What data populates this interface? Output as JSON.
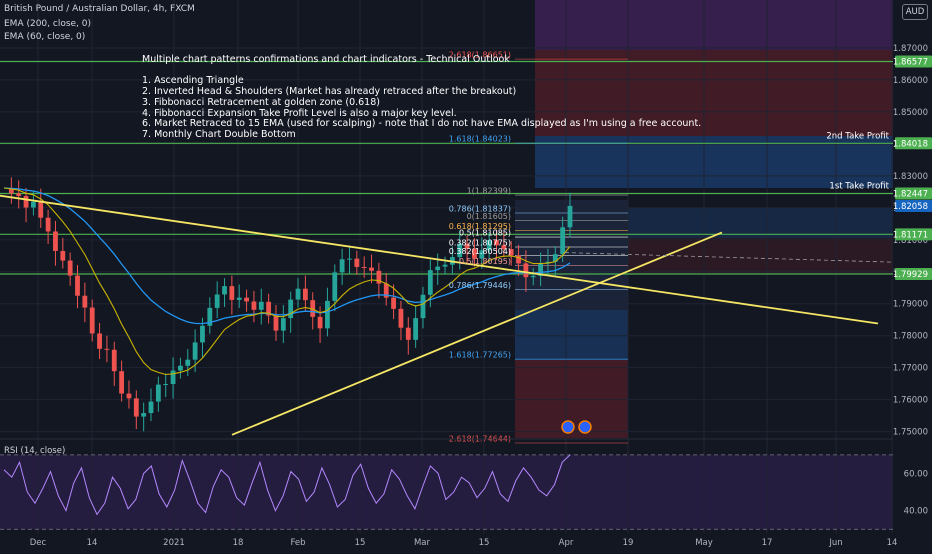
{
  "legend": {
    "symbol": "British Pound / Australian Dollar, 4h, FXCM",
    "ema200": "EMA (200, close, 0)",
    "ema60": "EMA (60, close, 0)",
    "currency": "AUD"
  },
  "annotation": {
    "title": "Multiple chart patterns confirmations and chart indicators - Technical Outlook",
    "items": [
      "1. Ascending Triangle",
      "2. Inverted Head & Shoulders (Market has already retraced after the breakout)",
      "3. Fibbonacci Retracement at golden zone (0.618)",
      "4. Fibbonacci Expansion Take Profit Level is also a major key level.",
      "6. Market Retraced to 15 EMA (used for scalping) - note that I do not have EMA displayed as I'm using a free account.",
      "7. Monthly Chart Double Bottom"
    ]
  },
  "targets": {
    "tp1": "1st Take Profit",
    "tp2": "2nd Take Profit"
  },
  "rsi_label": "RSI (14, close)",
  "colors": {
    "background": "#131722",
    "grid": "#1f2433",
    "axis_text": "#b2b5be",
    "trendline": "#f5e663",
    "key_level": "#4caf50",
    "ema200": "#2196f3",
    "ema60": "#c8b400",
    "rsi": "#b388ff",
    "up_candle": "#26a69a",
    "down_candle": "#ef5350"
  },
  "chart_data": [
    {
      "type": "candlestick",
      "title": "British Pound / Australian Dollar, 4h, FXCM",
      "y_ticks": [
        "1.87000",
        "1.86000",
        "1.85000",
        "1.84000",
        "1.83000",
        "1.82000",
        "1.81000",
        "1.80000",
        "1.79000",
        "1.78000",
        "1.77000",
        "1.76000",
        "1.75000"
      ],
      "ylim": [
        1.748,
        1.885
      ],
      "x_ticks": [
        "Dec",
        "14",
        "2021",
        "18",
        "Feb",
        "15",
        "Mar",
        "15",
        "Apr",
        "19",
        "May",
        "17",
        "Jun",
        "14"
      ],
      "price_badges": [
        {
          "value": "1.86577",
          "color": "#4caf50"
        },
        {
          "value": "1.84018",
          "color": "#4caf50"
        },
        {
          "value": "1.82447",
          "color": "#4caf50"
        },
        {
          "value": "1.82058",
          "color": "#1565c0"
        },
        {
          "value": "1.81171",
          "color": "#4caf50"
        },
        {
          "value": "1.79929",
          "color": "#4caf50"
        }
      ],
      "key_levels": [
        1.86577,
        1.84018,
        1.82447,
        1.81171,
        1.79929
      ],
      "fib_labels": [
        {
          "text": "2.618(1.86651)",
          "value": 1.86651,
          "color": "#ef5350"
        },
        {
          "text": "1.618(1.84023)",
          "value": 1.84023,
          "color": "#42a5f5"
        },
        {
          "text": "1(1.82399)",
          "value": 1.82399,
          "color": "#9e9e9e"
        },
        {
          "text": "0.786(1.81837)",
          "value": 1.81837,
          "color": "#90caf9"
        },
        {
          "text": "0(1.81605)",
          "value": 1.81605,
          "color": "#9e9e9e"
        },
        {
          "text": "0.618(1.81295)",
          "value": 1.81295,
          "color": "#ffb74d"
        },
        {
          "text": "0.5(1.81085)",
          "value": 1.81085,
          "color": "#ffffff"
        },
        {
          "text": "0.382(1.80775)",
          "value": 1.80775,
          "color": "#ffffff"
        },
        {
          "text": "0.382(1.80504)",
          "value": 1.80504,
          "color": "#ffffff"
        },
        {
          "text": "0.5(1.80195)",
          "value": 1.80195,
          "color": "#ef9a9a"
        },
        {
          "text": "0.786(1.79446)",
          "value": 1.79446,
          "color": "#90caf9"
        },
        {
          "text": "1.618(1.77265)",
          "value": 1.77265,
          "color": "#42a5f5"
        },
        {
          "text": "2.618(1.74644)",
          "value": 1.74644,
          "color": "#ef5350"
        }
      ],
      "price_series": [
        1.8262,
        1.8245,
        1.8237,
        1.8201,
        1.8219,
        1.8169,
        1.8126,
        1.8065,
        1.8035,
        1.7988,
        1.7925,
        1.7888,
        1.7807,
        1.7759,
        1.7756,
        1.7689,
        1.7619,
        1.7604,
        1.7547,
        1.7558,
        1.7594,
        1.7647,
        1.7649,
        1.7691,
        1.7706,
        1.7725,
        1.7779,
        1.7831,
        1.7887,
        1.7929,
        1.7955,
        1.7912,
        1.7919,
        1.7907,
        1.7881,
        1.7906,
        1.7863,
        1.7816,
        1.7855,
        1.7913,
        1.7947,
        1.7911,
        1.7859,
        1.7823,
        1.7909,
        1.7998,
        1.8039,
        1.8041,
        1.8015,
        1.8013,
        1.8003,
        1.7963,
        1.7919,
        1.7884,
        1.7825,
        1.7787,
        1.7855,
        1.7928,
        1.8005,
        1.8016,
        1.8022,
        1.8046,
        1.8088,
        1.8072,
        1.8041,
        1.8067,
        1.8099,
        1.8083,
        1.8071,
        1.8051,
        1.8026,
        1.7983,
        1.7987,
        1.8027,
        1.8031,
        1.8055,
        1.8139,
        1.8206
      ]
    },
    {
      "type": "line",
      "title": "RSI (14, close)",
      "y_ticks": [
        "60.00",
        "40.00"
      ],
      "ylim": [
        28,
        78
      ],
      "values": [
        62,
        58,
        66,
        50,
        44,
        52,
        61,
        48,
        40,
        55,
        63,
        47,
        38,
        44,
        58,
        52,
        41,
        46,
        60,
        64,
        49,
        42,
        51,
        67,
        56,
        44,
        39,
        53,
        62,
        58,
        47,
        43,
        55,
        66,
        51,
        40,
        48,
        61,
        57,
        45,
        50,
        63,
        54,
        42,
        46,
        59,
        65,
        52,
        44,
        49,
        62,
        57,
        48,
        41,
        53,
        64,
        60,
        46,
        50,
        58,
        55,
        47,
        52,
        61,
        49,
        45,
        56,
        63,
        58,
        51,
        48,
        54,
        66,
        70
      ]
    }
  ]
}
